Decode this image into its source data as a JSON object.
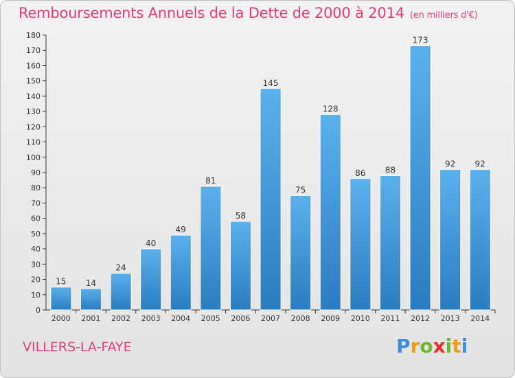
{
  "chart_data": {
    "type": "bar",
    "title": "Remboursements Annuels de la Dette de 2000 à 2014",
    "subtitle": "(en milliers d'€)",
    "categories": [
      "2000",
      "2001",
      "2002",
      "2003",
      "2004",
      "2005",
      "2006",
      "2007",
      "2008",
      "2009",
      "2010",
      "2011",
      "2012",
      "2013",
      "2014"
    ],
    "values": [
      15,
      14,
      24,
      40,
      49,
      81,
      58,
      145,
      75,
      128,
      86,
      88,
      173,
      92,
      92
    ],
    "ylim": [
      0,
      180
    ],
    "yticks": [
      0,
      10,
      20,
      30,
      40,
      50,
      60,
      70,
      80,
      90,
      100,
      110,
      120,
      130,
      140,
      150,
      160,
      170,
      180
    ],
    "xlabel": "",
    "ylabel": "",
    "grid": false,
    "bar_color": "#3b95d8"
  },
  "footer": {
    "commune": "VILLERS-LA-FAYE",
    "logo_letters": [
      "P",
      "r",
      "o",
      "x",
      "i",
      "t",
      "i"
    ],
    "logo_colors": [
      "#3e8ede",
      "#f09a1c",
      "#6cb52d",
      "#e2302b",
      "#6cb52d",
      "#f09a1c",
      "#3e8ede"
    ]
  },
  "colors": {
    "accent": "#e23a7a",
    "axis": "#333333"
  }
}
